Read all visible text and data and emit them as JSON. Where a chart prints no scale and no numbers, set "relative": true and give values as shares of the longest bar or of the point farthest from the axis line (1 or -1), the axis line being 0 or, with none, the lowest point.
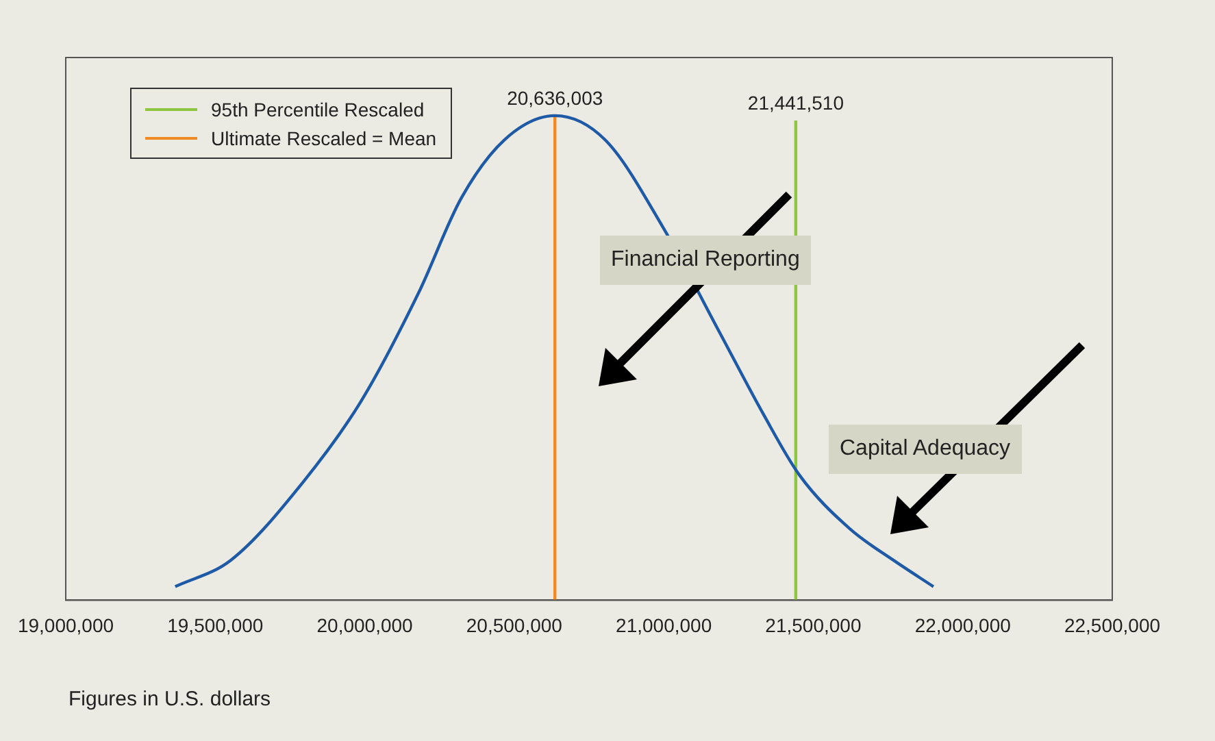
{
  "chart_data": {
    "type": "line",
    "relative": true,
    "xlim": [
      19000000,
      22500000
    ],
    "xticks": [
      {
        "value": 19000000,
        "label": "19,000,000"
      },
      {
        "value": 19500000,
        "label": "19,500,000"
      },
      {
        "value": 20000000,
        "label": "20,000,000"
      },
      {
        "value": 20500000,
        "label": "20,500,000"
      },
      {
        "value": 21000000,
        "label": "21,000,000"
      },
      {
        "value": 21500000,
        "label": "21,500,000"
      },
      {
        "value": 22000000,
        "label": "22,000,000"
      },
      {
        "value": 22500000,
        "label": "22,500,000"
      }
    ],
    "series": [
      {
        "color": "#1f5aa6",
        "x": [
          19366000,
          19553000,
          19794000,
          19987000,
          20179000,
          20323000,
          20467000,
          20636003,
          20804000,
          20997000,
          21189000,
          21334000,
          21454000,
          21623000,
          21767000,
          21902000
        ],
        "values": [
          0.028,
          0.083,
          0.244,
          0.41,
          0.633,
          0.83,
          0.95,
          1,
          0.95,
          0.77,
          0.55,
          0.383,
          0.258,
          0.147,
          0.083,
          0.028
        ]
      },
      {
        "name": "95th Percentile Rescaled",
        "color": "#8dc63f",
        "x": [
          21441510,
          21441510
        ],
        "values": [
          0,
          0.99
        ]
      },
      {
        "name": "Ultimate Rescaled = Mean",
        "color": "#f08a24",
        "x": [
          20636003,
          20636003
        ],
        "values": [
          0,
          1
        ]
      }
    ],
    "legend": "top left",
    "grid": false,
    "marker": "none",
    "line_style": "solid",
    "annotations": [
      {
        "text": "20,636,003",
        "x": 20636003,
        "y": 1
      },
      {
        "text": "21,441,510",
        "x": 21441510,
        "y": 0.99
      },
      "Financial Reporting",
      "Capital Adequacy",
      "Figures in U.S. dollars"
    ]
  }
}
